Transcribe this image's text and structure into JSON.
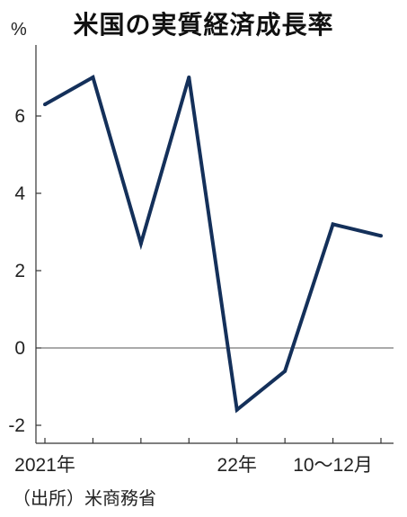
{
  "chart_data": {
    "type": "line",
    "title": "米国の実質経済成長率",
    "ylabel": "%",
    "ylim": [
      -2.5,
      8
    ],
    "yticks": [
      -2,
      0,
      2,
      4,
      6
    ],
    "yticklabels": [
      "-2",
      "0",
      "2",
      "4",
      "6"
    ],
    "x": [
      "2021-Q1",
      "2021-Q2",
      "2021-Q3",
      "2021-Q4",
      "2022-Q1",
      "2022-Q2",
      "2022-Q3",
      "2022-Q4"
    ],
    "xticklabels": [
      "2021年",
      "",
      "",
      "",
      "22年",
      "",
      "10〜12月",
      ""
    ],
    "values": [
      6.3,
      7.0,
      2.7,
      7.0,
      -1.6,
      -0.6,
      3.2,
      2.9
    ],
    "line_color": "#14305a",
    "grid": false,
    "zero_line": true
  },
  "source": "（出所）米商務省"
}
